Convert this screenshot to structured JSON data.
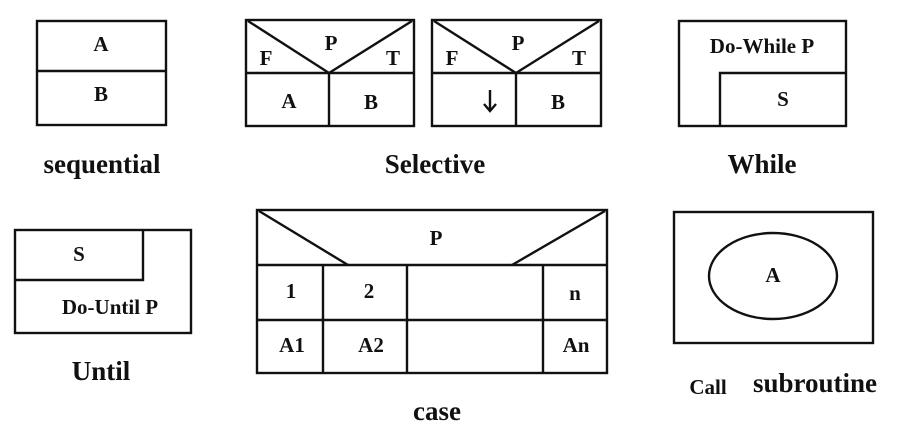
{
  "sequential": {
    "a": "A",
    "b": "B",
    "caption": "sequential"
  },
  "selective": {
    "left": {
      "p": "P",
      "f": "F",
      "t": "T",
      "a": "A",
      "b": "B"
    },
    "right": {
      "p": "P",
      "f": "F",
      "t": "T",
      "b": "B"
    },
    "caption": "Selective"
  },
  "while": {
    "condition": "Do-While P",
    "s": "S",
    "caption": "While"
  },
  "until": {
    "s": "S",
    "condition": "Do-Until P",
    "caption": "Until"
  },
  "case": {
    "p": "P",
    "headers": [
      "1",
      "2",
      "",
      "n"
    ],
    "actions": [
      "A1",
      "A2",
      "",
      "An"
    ],
    "caption": "case"
  },
  "call": {
    "a": "A",
    "caption_small": "Call",
    "caption_large": "subroutine"
  }
}
